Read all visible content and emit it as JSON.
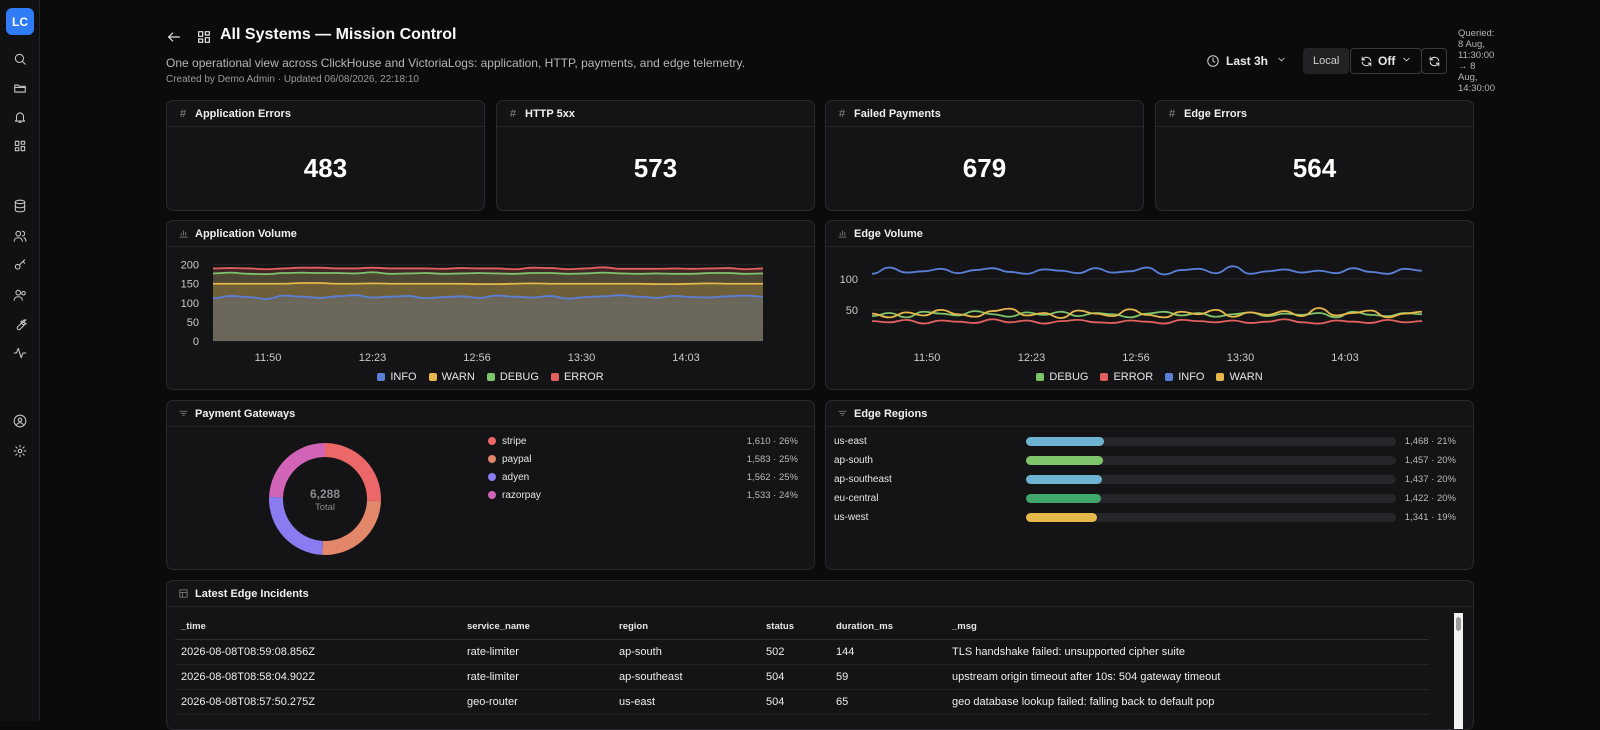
{
  "app": {
    "logo": "LC"
  },
  "rail": {
    "icons": [
      "search-icon",
      "folder-icon",
      "bell-icon",
      "dashboard-icon",
      "database-icon",
      "users-icon",
      "key-icon",
      "team-icon",
      "wrench-icon",
      "activity-icon",
      "user-circle-icon",
      "settings-icon"
    ]
  },
  "header": {
    "title": "All Systems — Mission Control",
    "subtitle": "One operational view across ClickHouse and VictoriaLogs: application, HTTP, payments, and edge telemetry.",
    "meta": "Created by Demo Admin · Updated 06/08/2026, 22:18:10"
  },
  "toolbar": {
    "time_range": "Last 3h",
    "timezone": "Local",
    "refresh": "Off",
    "queried": "Queried: 8 Aug, 11:30:00 → 8 Aug, 14:30:00"
  },
  "stats": [
    {
      "label": "Application Errors",
      "value": "483"
    },
    {
      "label": "HTTP 5xx",
      "value": "573"
    },
    {
      "label": "Failed Payments",
      "value": "679"
    },
    {
      "label": "Edge Errors",
      "value": "564"
    }
  ],
  "chart_data": [
    {
      "title": "Application Volume",
      "type": "area",
      "stacked": true,
      "x_ticks": [
        "11:50",
        "12:23",
        "12:56",
        "13:30",
        "14:03"
      ],
      "y_ticks": [
        0,
        50,
        100,
        150,
        200
      ],
      "ylim": [
        0,
        220
      ],
      "legend_position": "bottom",
      "series": [
        {
          "name": "INFO",
          "color": "#5b7fd6",
          "values": [
            112,
            118,
            115,
            110,
            119,
            116,
            113,
            117,
            120,
            114,
            116,
            118,
            112,
            115,
            117,
            113,
            119,
            116,
            114,
            118,
            111,
            115,
            117,
            120,
            116,
            113,
            118,
            115,
            114,
            117,
            119,
            116
          ]
        },
        {
          "name": "WARN",
          "color": "#e6b84a",
          "values": [
            38,
            32,
            35,
            40,
            31,
            36,
            39,
            33,
            30,
            37,
            34,
            32,
            38,
            35,
            33,
            36,
            30,
            34,
            37,
            32,
            39,
            35,
            33,
            30,
            34,
            36,
            31,
            35,
            37,
            33,
            31,
            34
          ]
        },
        {
          "name": "DEBUG",
          "color": "#7fc46b",
          "values": [
            27,
            29,
            26,
            25,
            28,
            27,
            26,
            28,
            27,
            29,
            26,
            27,
            28,
            26,
            27,
            29,
            28,
            26,
            27,
            28,
            26,
            27,
            29,
            27,
            26,
            28,
            27,
            26,
            27,
            28,
            26,
            27
          ]
        },
        {
          "name": "ERROR",
          "color": "#e36060",
          "values": [
            13,
            12,
            14,
            13,
            12,
            13,
            14,
            12,
            13,
            12,
            14,
            13,
            12,
            13,
            14,
            12,
            13,
            12,
            14,
            13,
            12,
            13,
            14,
            12,
            13,
            12,
            14,
            13,
            12,
            13,
            12,
            13
          ]
        }
      ]
    },
    {
      "title": "Edge Volume",
      "type": "line",
      "x_ticks": [
        "11:50",
        "12:23",
        "12:56",
        "13:30",
        "14:03"
      ],
      "y_ticks": [
        50,
        100
      ],
      "ylim": [
        0,
        135
      ],
      "legend_position": "bottom",
      "series": [
        {
          "name": "DEBUG",
          "color": "#7fc46b",
          "values": [
            40,
            45,
            38,
            47,
            44,
            41,
            48,
            43,
            39,
            46,
            42,
            47,
            40,
            45,
            43,
            38,
            44,
            47,
            41,
            45,
            39,
            43,
            46,
            40,
            44,
            42,
            45,
            38,
            47,
            42,
            40,
            45,
            43
          ]
        },
        {
          "name": "ERROR",
          "color": "#e36060",
          "values": [
            32,
            30,
            34,
            28,
            33,
            31,
            29,
            35,
            30,
            33,
            28,
            32,
            34,
            30,
            29,
            33,
            31,
            28,
            34,
            32,
            30,
            33,
            29,
            31,
            35,
            30,
            28,
            33,
            31,
            29,
            34,
            30,
            32
          ]
        },
        {
          "name": "INFO",
          "color": "#5b7fd6",
          "values": [
            108,
            118,
            110,
            112,
            116,
            109,
            114,
            117,
            111,
            108,
            115,
            113,
            109,
            117,
            110,
            112,
            118,
            107,
            114,
            116,
            109,
            120,
            108,
            112,
            115,
            110,
            113,
            109,
            117,
            111,
            108,
            116,
            113
          ]
        },
        {
          "name": "WARN",
          "color": "#e6b84a",
          "values": [
            44,
            38,
            46,
            41,
            50,
            43,
            39,
            48,
            52,
            41,
            45,
            37,
            49,
            44,
            40,
            51,
            42,
            38,
            47,
            43,
            50,
            39,
            46,
            42,
            48,
            40,
            53,
            41,
            45,
            49,
            38,
            44,
            47
          ]
        }
      ]
    },
    {
      "title": "Payment Gateways",
      "type": "pie",
      "total_label": "Total",
      "total": "6,288",
      "slices": [
        {
          "name": "stripe",
          "value": 1610,
          "display": "1,610 · 26%",
          "color": "#ec6767"
        },
        {
          "name": "paypal",
          "value": 1583,
          "display": "1,583 · 25%",
          "color": "#e3876b"
        },
        {
          "name": "adyen",
          "value": 1562,
          "display": "1,562 · 25%",
          "color": "#8b7bf0"
        },
        {
          "name": "razorpay",
          "value": 1533,
          "display": "1,533 · 24%",
          "color": "#d264b8"
        }
      ]
    },
    {
      "title": "Edge Regions",
      "type": "bar",
      "orientation": "horizontal",
      "categories": [
        "us-east",
        "ap-south",
        "ap-southeast",
        "eu-central",
        "us-west"
      ],
      "values": [
        1468,
        1457,
        1437,
        1422,
        1341
      ],
      "labels": [
        "1,468 · 21%",
        "1,457 · 20%",
        "1,437 · 20%",
        "1,422 · 20%",
        "1,341 · 19%"
      ],
      "colors": [
        "#6fb3d3",
        "#7fc46b",
        "#6fb3d3",
        "#3fa86a",
        "#e6b84a"
      ],
      "xlim": [
        0,
        7000
      ]
    }
  ],
  "incidents": {
    "title": "Latest Edge Incidents",
    "columns": [
      "_time",
      "service_name",
      "region",
      "status",
      "duration_ms",
      "_msg"
    ],
    "rows": [
      [
        "2026-08-08T08:59:08.856Z",
        "rate-limiter",
        "ap-south",
        "502",
        "144",
        "TLS handshake failed: unsupported cipher suite"
      ],
      [
        "2026-08-08T08:58:04.902Z",
        "rate-limiter",
        "ap-southeast",
        "504",
        "59",
        "upstream origin timeout after 10s: 504 gateway timeout"
      ],
      [
        "2026-08-08T08:57:50.275Z",
        "geo-router",
        "us-east",
        "504",
        "65",
        "geo database lookup failed: falling back to default pop"
      ]
    ]
  }
}
